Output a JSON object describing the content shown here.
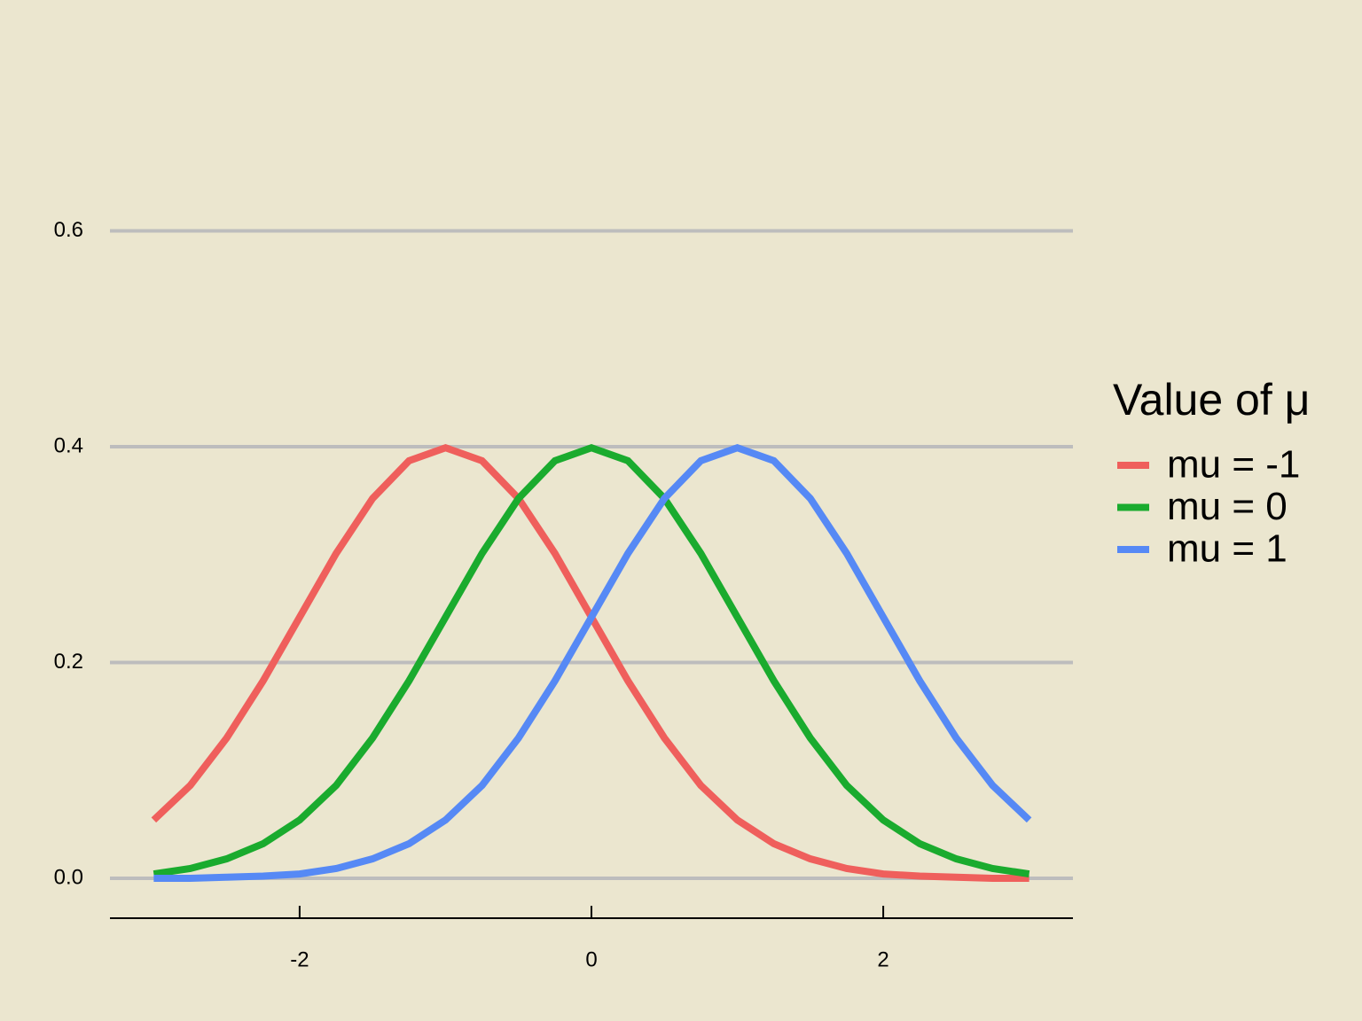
{
  "chart_data": {
    "type": "line",
    "legend_title": "Value of μ",
    "x": [
      -3,
      -2.75,
      -2.5,
      -2.25,
      -2,
      -1.75,
      -1.5,
      -1.25,
      -1,
      -0.75,
      -0.5,
      -0.25,
      0,
      0.25,
      0.5,
      0.75,
      1,
      1.25,
      1.5,
      1.75,
      2,
      2.25,
      2.5,
      2.75,
      3
    ],
    "series": [
      {
        "name": "mu = -1",
        "color": "#ef5f5c",
        "values": [
          0.054,
          0.086,
          0.13,
          0.183,
          0.242,
          0.301,
          0.352,
          0.387,
          0.399,
          0.387,
          0.352,
          0.301,
          0.242,
          0.183,
          0.13,
          0.086,
          0.054,
          0.032,
          0.018,
          0.009,
          0.004,
          0.002,
          0.001,
          0,
          0
        ]
      },
      {
        "name": "mu = 0",
        "color": "#1aab2e",
        "values": [
          0.004,
          0.009,
          0.018,
          0.032,
          0.054,
          0.086,
          0.13,
          0.183,
          0.242,
          0.301,
          0.352,
          0.387,
          0.399,
          0.387,
          0.352,
          0.301,
          0.242,
          0.183,
          0.13,
          0.086,
          0.054,
          0.032,
          0.018,
          0.009,
          0.004
        ]
      },
      {
        "name": "mu = 1",
        "color": "#5689f5",
        "values": [
          0,
          0,
          0.001,
          0.002,
          0.004,
          0.009,
          0.018,
          0.032,
          0.054,
          0.086,
          0.13,
          0.183,
          0.242,
          0.301,
          0.352,
          0.387,
          0.399,
          0.387,
          0.352,
          0.301,
          0.242,
          0.183,
          0.13,
          0.086,
          0.054
        ]
      }
    ],
    "xlim": [
      -3.3,
      3.3
    ],
    "xticks": [
      -2,
      0,
      2
    ],
    "ylim": [
      -0.037,
      0.63
    ],
    "yticks": [
      {
        "value": 0,
        "label": "0.0"
      },
      0.2,
      0.4,
      0.6
    ],
    "grid": true,
    "legend": "right"
  }
}
